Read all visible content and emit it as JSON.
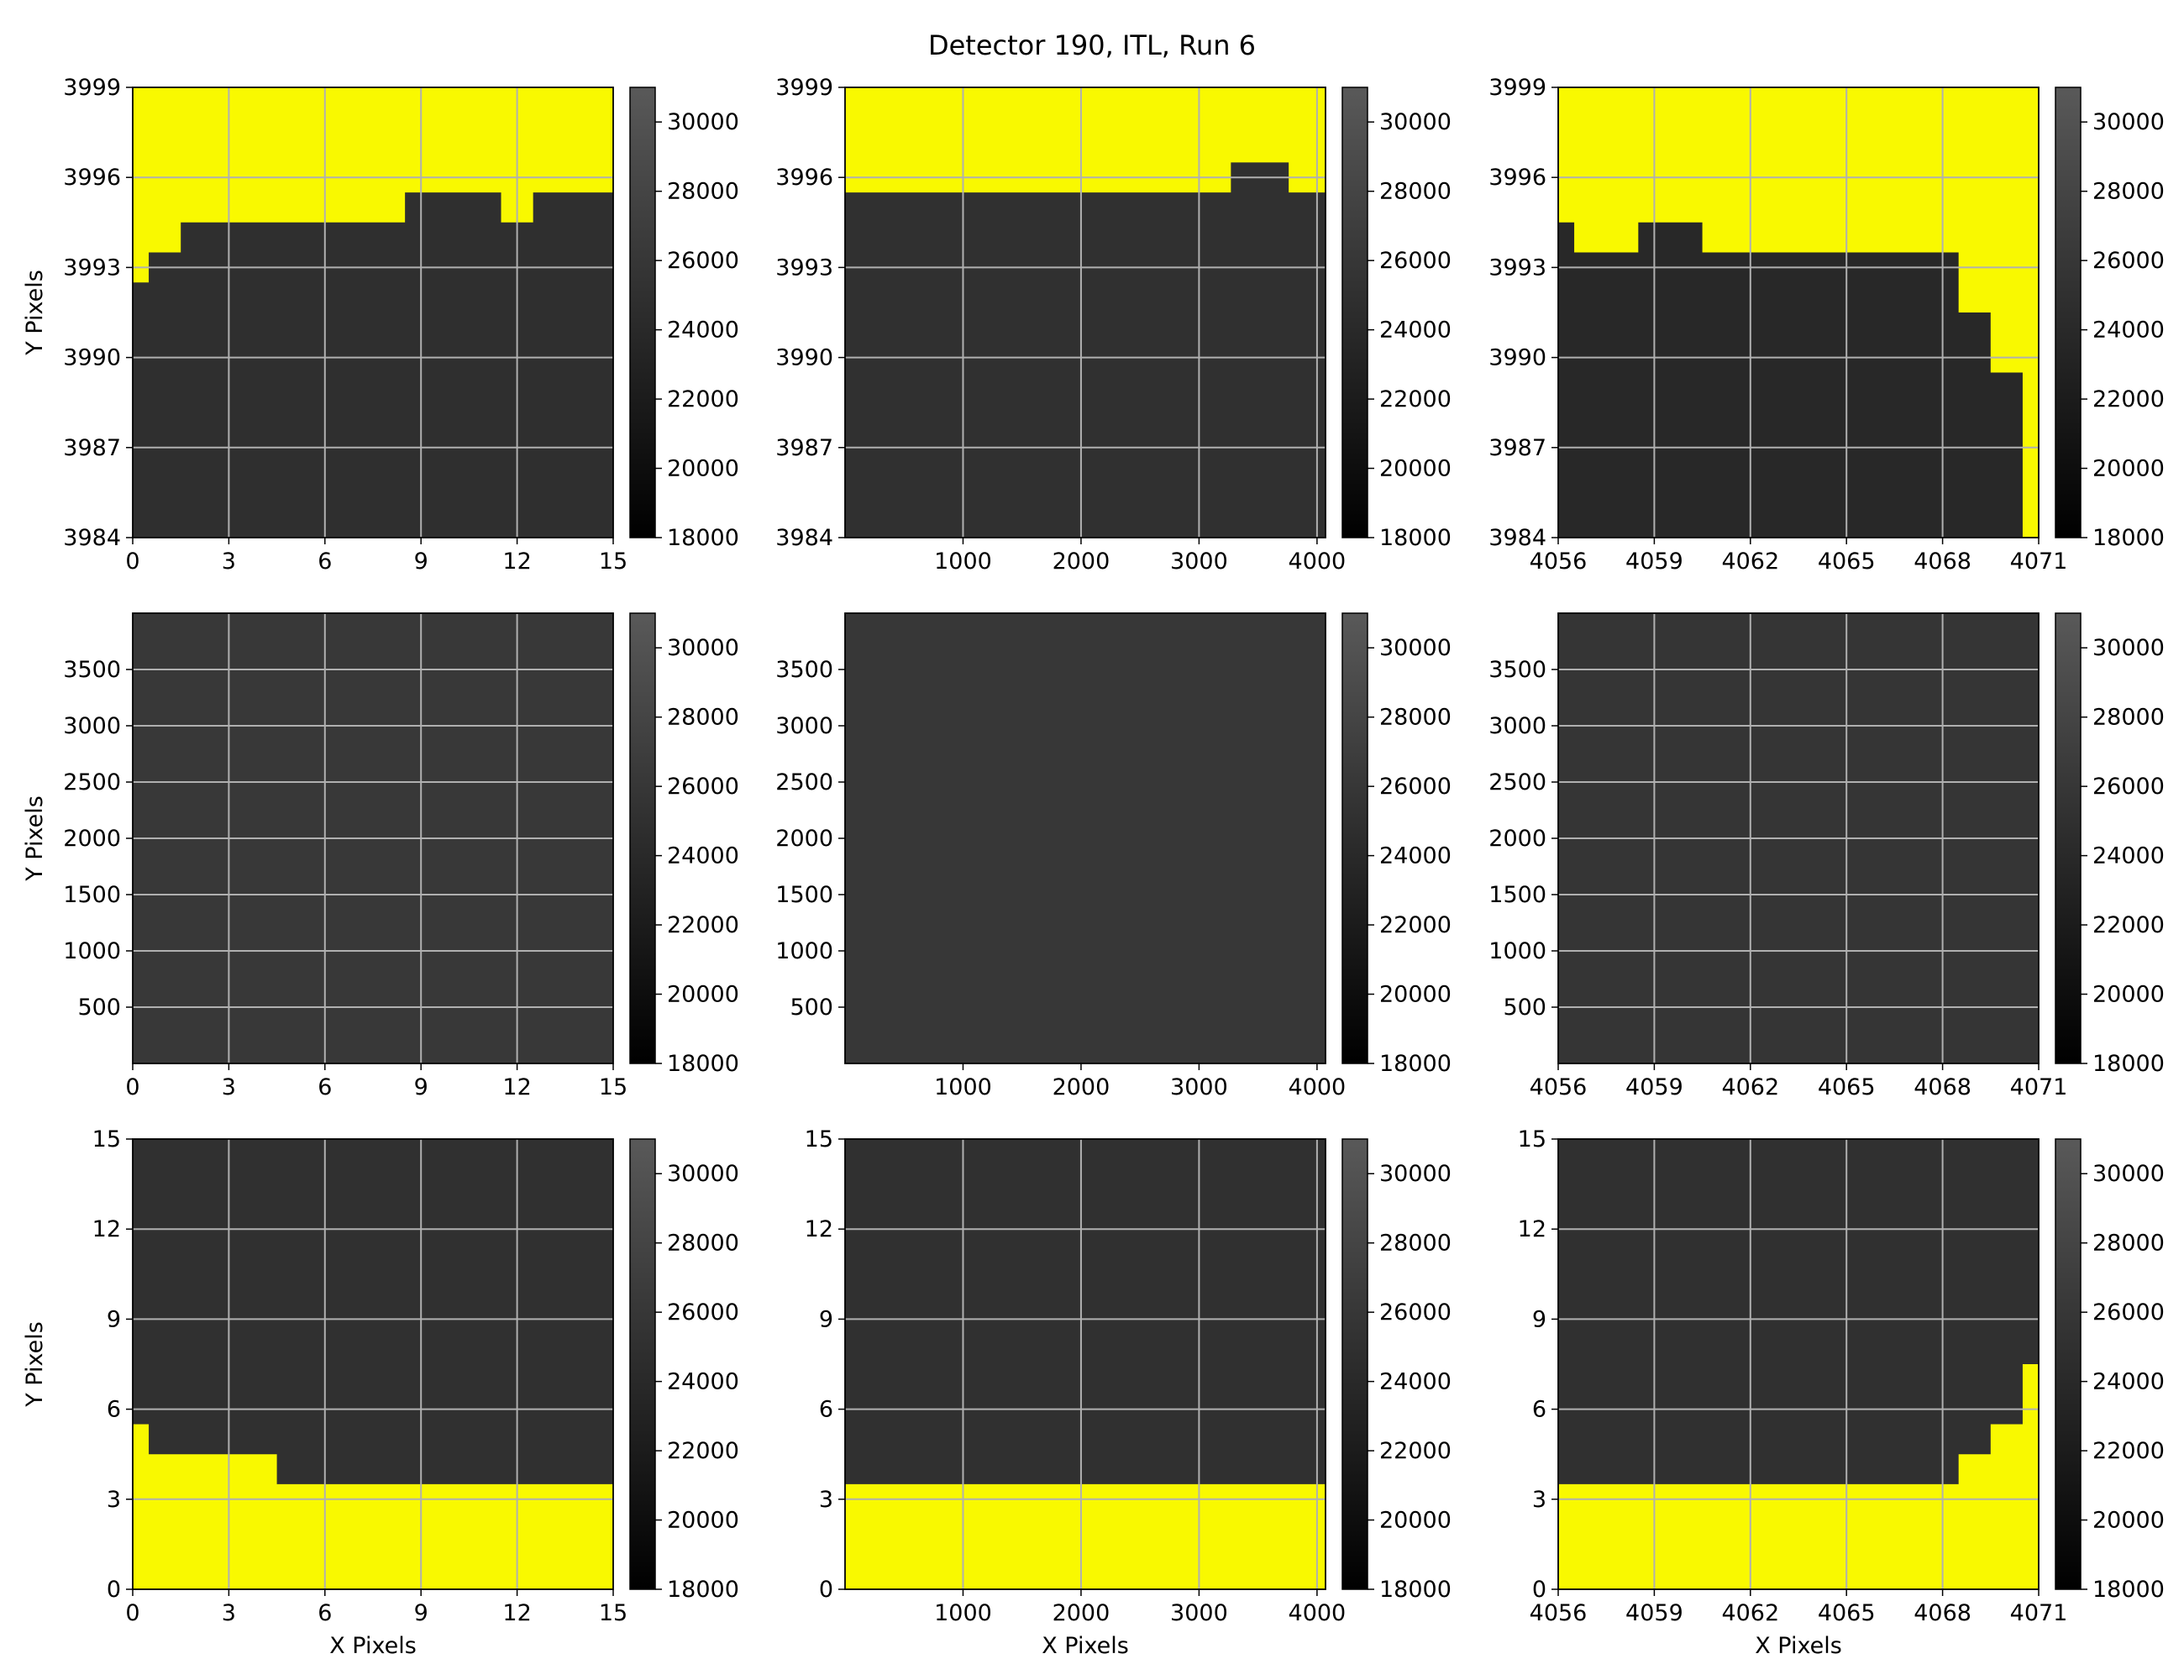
{
  "figure": {
    "title": "Detector 190, ITL, Run 6"
  },
  "colors": {
    "masked": "#f9f900",
    "grid": "#b0b0b0",
    "cmap_low": "#000000",
    "cmap_high": "#595959"
  },
  "chart_data": [
    {
      "type": "heatmap",
      "row": 0,
      "col": 0,
      "xlim": [
        0,
        15
      ],
      "ylim": [
        3984,
        3999
      ],
      "xticks": [
        "0",
        "3",
        "6",
        "9",
        "12",
        "15"
      ],
      "yticks": [
        "3984",
        "3987",
        "3990",
        "3993",
        "3996",
        "3999"
      ],
      "xlabel": "",
      "ylabel": "Y Pixels",
      "mask_side": "top",
      "mask_boundary": [
        [
          0,
          3992.5
        ],
        [
          0.5,
          3992.5
        ],
        [
          0.5,
          3993.5
        ],
        [
          1.5,
          3993.5
        ],
        [
          1.5,
          3994.5
        ],
        [
          8.5,
          3994.5
        ],
        [
          8.5,
          3995.5
        ],
        [
          11.5,
          3995.5
        ],
        [
          11.5,
          3994.5
        ],
        [
          12.5,
          3994.5
        ],
        [
          12.5,
          3995.5
        ],
        [
          15,
          3995.5
        ]
      ],
      "pixel_value": 24800,
      "colorbar": {
        "min": 18000,
        "max": 31000,
        "ticks": [
          18000,
          20000,
          22000,
          24000,
          26000,
          28000,
          30000
        ]
      }
    },
    {
      "type": "heatmap",
      "row": 0,
      "col": 1,
      "xlim": [
        0,
        4072
      ],
      "ylim": [
        3984,
        3999
      ],
      "xticks": [
        "1000",
        "2000",
        "3000",
        "4000"
      ],
      "yticks": [
        "3984",
        "3987",
        "3990",
        "3993",
        "3996",
        "3999"
      ],
      "xlabel": "",
      "ylabel": "",
      "mask_side": "top",
      "mask_boundary": [
        [
          0,
          3995.5
        ],
        [
          3270,
          3995.5
        ],
        [
          3270,
          3996.5
        ],
        [
          3760,
          3996.5
        ],
        [
          3760,
          3995.5
        ],
        [
          4072,
          3995.5
        ]
      ],
      "pixel_value": 25000,
      "colorbar": {
        "min": 18000,
        "max": 31000,
        "ticks": [
          18000,
          20000,
          22000,
          24000,
          26000,
          28000,
          30000
        ]
      }
    },
    {
      "type": "heatmap",
      "row": 0,
      "col": 2,
      "xlim": [
        4056,
        4071
      ],
      "ylim": [
        3984,
        3999
      ],
      "xticks": [
        "4056",
        "4059",
        "4062",
        "4065",
        "4068",
        "4071"
      ],
      "yticks": [
        "3984",
        "3987",
        "3990",
        "3993",
        "3996",
        "3999"
      ],
      "xlabel": "",
      "ylabel": "",
      "mask_side": "top",
      "mask_boundary": [
        [
          4056,
          3994.5
        ],
        [
          4056.5,
          3994.5
        ],
        [
          4056.5,
          3993.5
        ],
        [
          4058.5,
          3993.5
        ],
        [
          4058.5,
          3994.5
        ],
        [
          4060.5,
          3994.5
        ],
        [
          4060.5,
          3993.5
        ],
        [
          4068.5,
          3993.5
        ],
        [
          4068.5,
          3991.5
        ],
        [
          4069.5,
          3991.5
        ],
        [
          4069.5,
          3989.5
        ],
        [
          4070.5,
          3989.5
        ],
        [
          4070.5,
          3984
        ],
        [
          4071,
          3984
        ]
      ],
      "pixel_value": 23800,
      "colorbar": {
        "min": 18000,
        "max": 31000,
        "ticks": [
          18000,
          20000,
          22000,
          24000,
          26000,
          28000,
          30000
        ]
      }
    },
    {
      "type": "heatmap",
      "row": 1,
      "col": 0,
      "xlim": [
        0,
        15
      ],
      "ylim": [
        0,
        4000
      ],
      "xticks": [
        "0",
        "3",
        "6",
        "9",
        "12",
        "15"
      ],
      "yticks": [
        "500",
        "1000",
        "1500",
        "2000",
        "2500",
        "3000",
        "3500"
      ],
      "xlabel": "",
      "ylabel": "Y Pixels",
      "mask_side": "none",
      "mask_boundary": [],
      "pixel_value": 26200,
      "colorbar": {
        "min": 18000,
        "max": 31000,
        "ticks": [
          18000,
          20000,
          22000,
          24000,
          26000,
          28000,
          30000
        ]
      }
    },
    {
      "type": "heatmap",
      "row": 1,
      "col": 1,
      "xlim": [
        0,
        4072
      ],
      "ylim": [
        0,
        4000
      ],
      "xticks": [
        "1000",
        "2000",
        "3000",
        "4000"
      ],
      "yticks": [
        "500",
        "1000",
        "1500",
        "2000",
        "2500",
        "3000",
        "3500"
      ],
      "xlabel": "",
      "ylabel": "",
      "mask_side": "none",
      "mask_boundary": [],
      "pixel_value": 26000,
      "grid": false,
      "colorbar": {
        "min": 18000,
        "max": 31000,
        "ticks": [
          18000,
          20000,
          22000,
          24000,
          26000,
          28000,
          30000
        ]
      }
    },
    {
      "type": "heatmap",
      "row": 1,
      "col": 2,
      "xlim": [
        4056,
        4071
      ],
      "ylim": [
        0,
        4000
      ],
      "xticks": [
        "4056",
        "4059",
        "4062",
        "4065",
        "4068",
        "4071"
      ],
      "yticks": [
        "500",
        "1000",
        "1500",
        "2000",
        "2500",
        "3000",
        "3500"
      ],
      "xlabel": "",
      "ylabel": "",
      "mask_side": "none",
      "mask_boundary": [],
      "pixel_value": 25800,
      "colorbar": {
        "min": 18000,
        "max": 31000,
        "ticks": [
          18000,
          20000,
          22000,
          24000,
          26000,
          28000,
          30000
        ]
      }
    },
    {
      "type": "heatmap",
      "row": 2,
      "col": 0,
      "xlim": [
        0,
        15
      ],
      "ylim": [
        0,
        15
      ],
      "xticks": [
        "0",
        "3",
        "6",
        "9",
        "12",
        "15"
      ],
      "yticks": [
        "0",
        "3",
        "6",
        "9",
        "12",
        "15"
      ],
      "xlabel": "X Pixels",
      "ylabel": "Y Pixels",
      "mask_side": "bottom",
      "mask_boundary": [
        [
          0,
          5.5
        ],
        [
          0.5,
          5.5
        ],
        [
          0.5,
          4.5
        ],
        [
          4.5,
          4.5
        ],
        [
          4.5,
          3.5
        ],
        [
          15,
          3.5
        ]
      ],
      "pixel_value": 25000,
      "colorbar": {
        "min": 18000,
        "max": 31000,
        "ticks": [
          18000,
          20000,
          22000,
          24000,
          26000,
          28000,
          30000
        ]
      }
    },
    {
      "type": "heatmap",
      "row": 2,
      "col": 1,
      "xlim": [
        0,
        4072
      ],
      "ylim": [
        0,
        15
      ],
      "xticks": [
        "1000",
        "2000",
        "3000",
        "4000"
      ],
      "yticks": [
        "0",
        "3",
        "6",
        "9",
        "12",
        "15"
      ],
      "xlabel": "X Pixels",
      "ylabel": "",
      "mask_side": "bottom",
      "mask_boundary": [
        [
          0,
          3.5
        ],
        [
          4072,
          3.5
        ]
      ],
      "pixel_value": 25000,
      "colorbar": {
        "min": 18000,
        "max": 31000,
        "ticks": [
          18000,
          20000,
          22000,
          24000,
          26000,
          28000,
          30000
        ]
      }
    },
    {
      "type": "heatmap",
      "row": 2,
      "col": 2,
      "xlim": [
        4056,
        4071
      ],
      "ylim": [
        0,
        15
      ],
      "xticks": [
        "4056",
        "4059",
        "4062",
        "4065",
        "4068",
        "4071"
      ],
      "yticks": [
        "0",
        "3",
        "6",
        "9",
        "12",
        "15"
      ],
      "xlabel": "X Pixels",
      "ylabel": "",
      "mask_side": "bottom",
      "mask_boundary": [
        [
          4056,
          3.5
        ],
        [
          4068.5,
          3.5
        ],
        [
          4068.5,
          4.5
        ],
        [
          4069.5,
          4.5
        ],
        [
          4069.5,
          5.5
        ],
        [
          4070.5,
          5.5
        ],
        [
          4070.5,
          7.5
        ],
        [
          4071,
          7.5
        ]
      ],
      "pixel_value": 25000,
      "colorbar": {
        "min": 18000,
        "max": 31000,
        "ticks": [
          18000,
          20000,
          22000,
          24000,
          26000,
          28000,
          30000
        ]
      }
    }
  ]
}
